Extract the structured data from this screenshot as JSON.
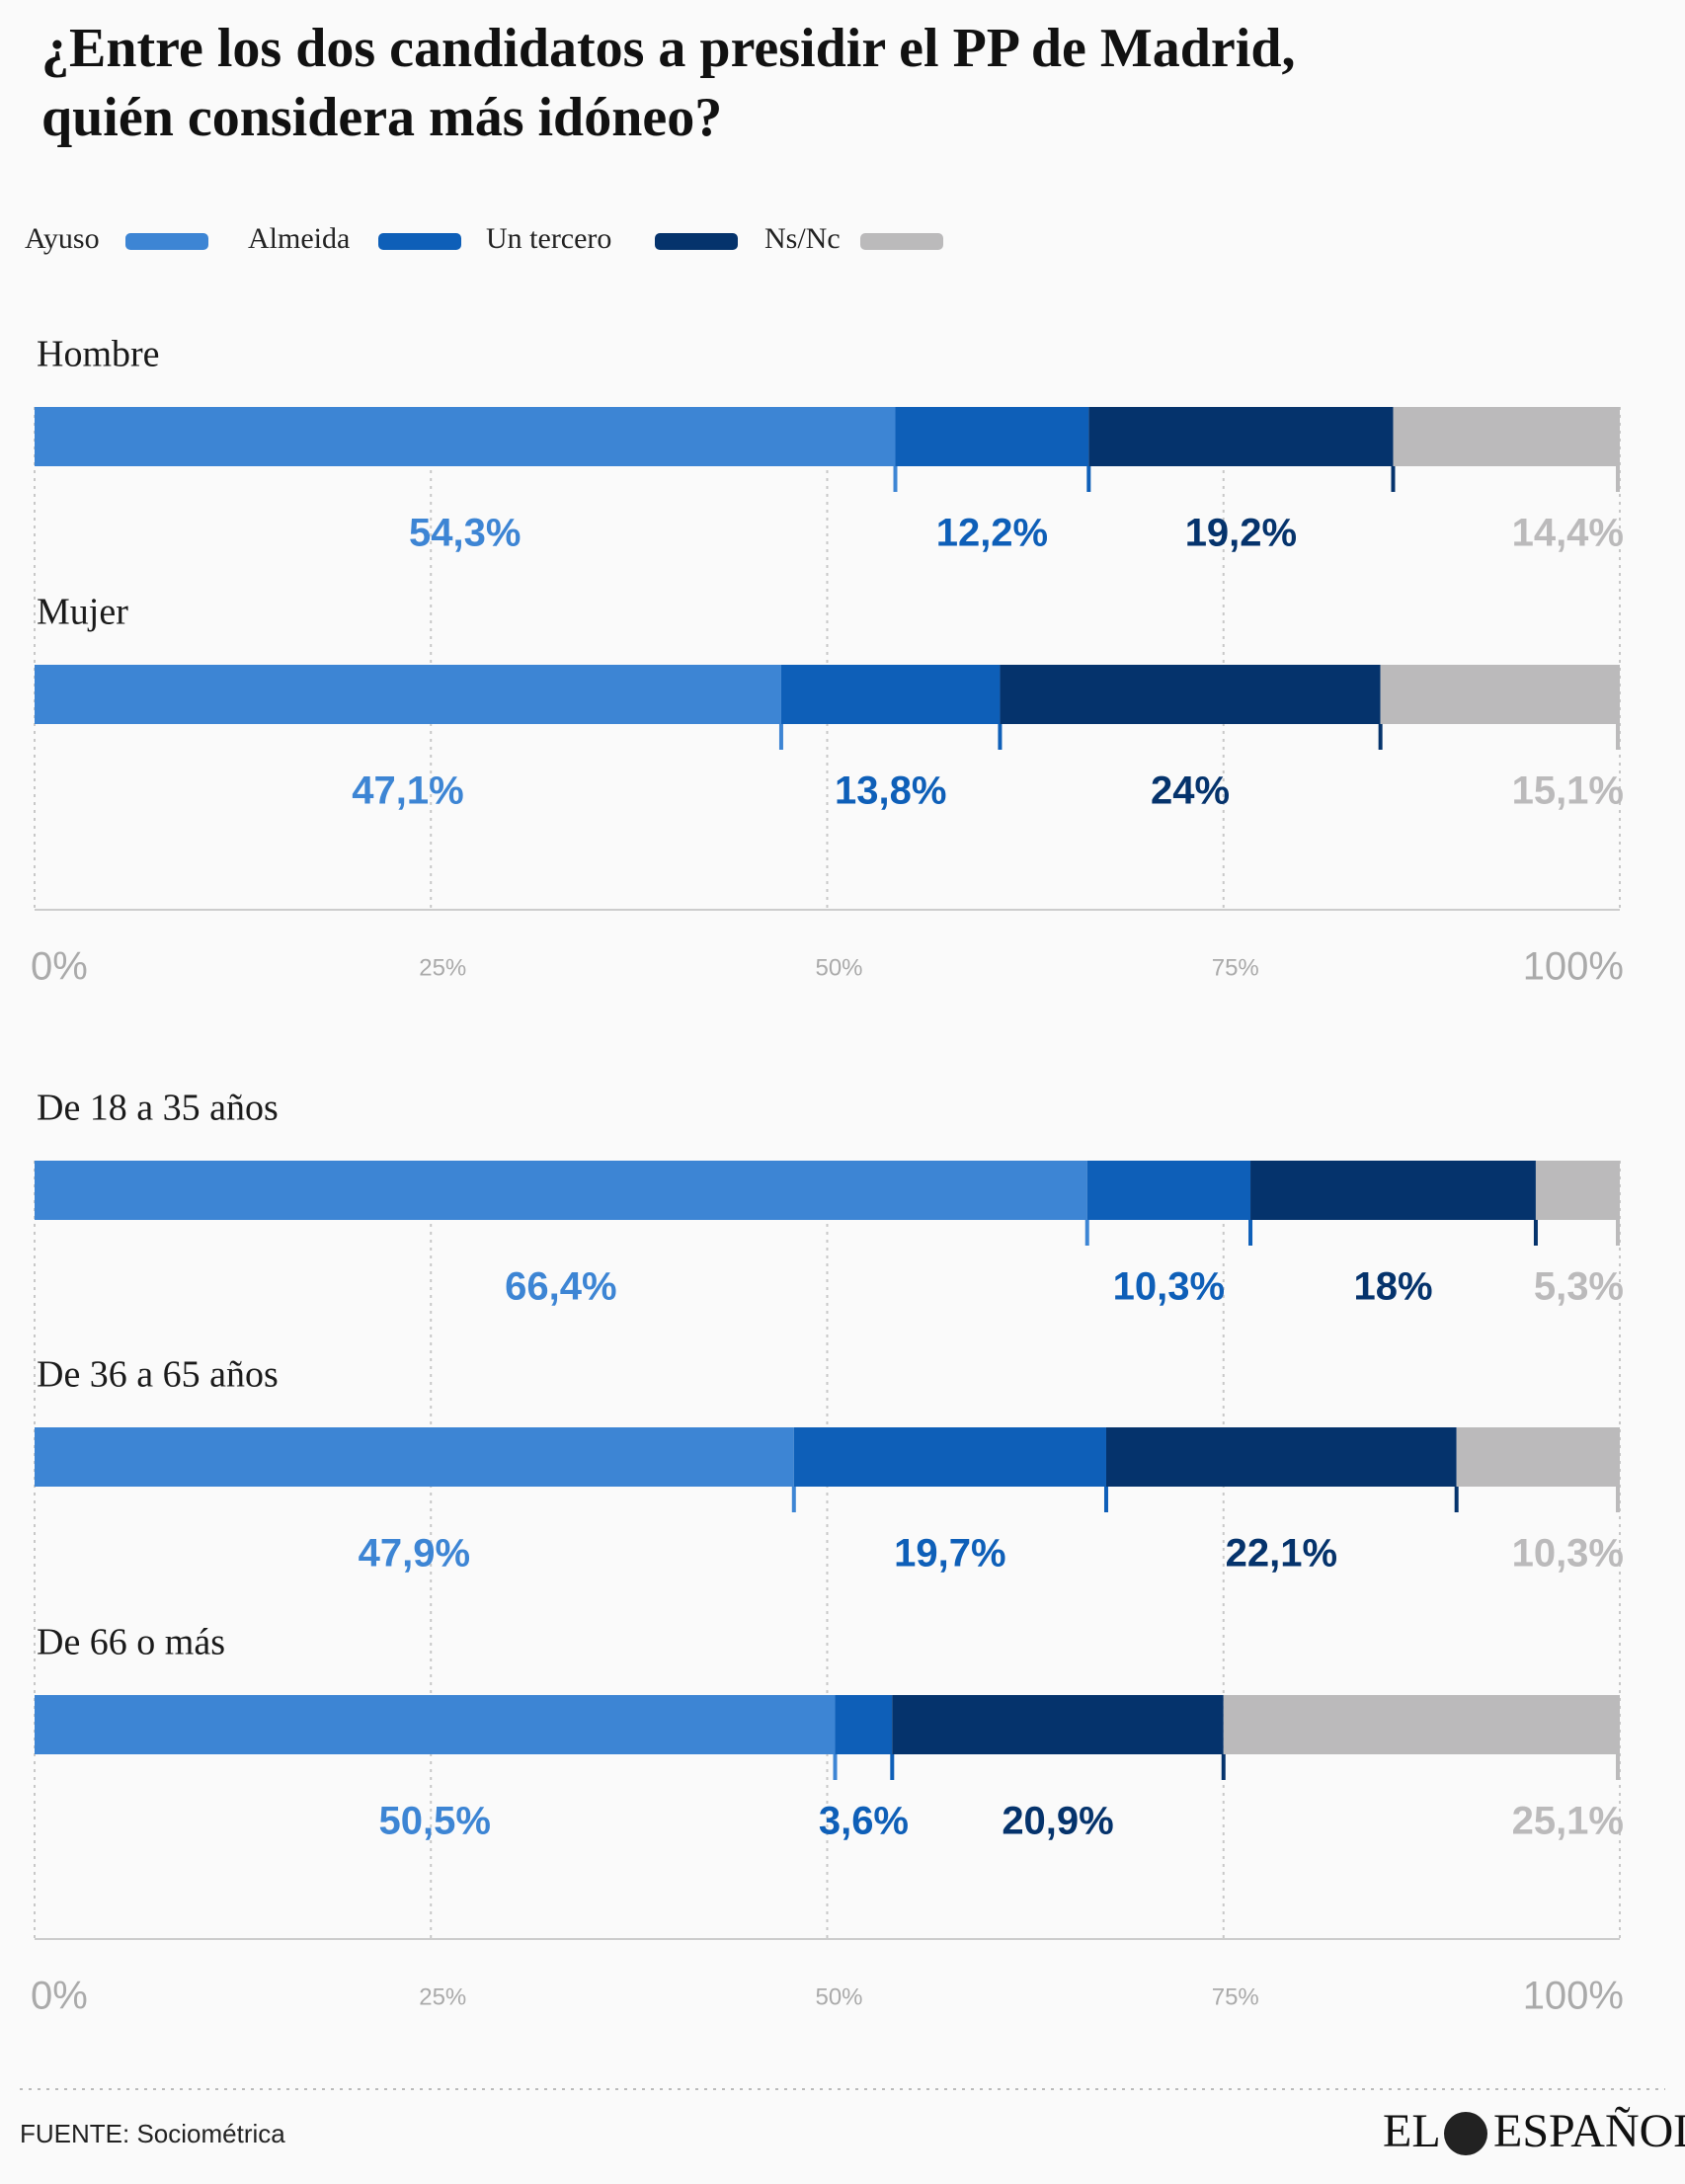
{
  "title": [
    "¿Entre los dos candidatos a presidir el PP de  Madrid,",
    "quién considera más idóneo?"
  ],
  "chart_data": {
    "type": "stacked-bar-horizontal",
    "categories": [
      "Hombre",
      "Mujer",
      "De 18 a 35 años",
      "De 36 a 65 años",
      "De 66 o más"
    ],
    "series": [
      {
        "name": "Ayuso",
        "color": "#3d85d4",
        "values": [
          54.3,
          47.1,
          66.4,
          47.9,
          50.5
        ],
        "value_labels": [
          "54,3%",
          "47,1%",
          "66,4%",
          "47,9%",
          "50,5%"
        ]
      },
      {
        "name": "Almeida",
        "color": "#0e5fb8",
        "values": [
          12.2,
          13.8,
          10.3,
          19.7,
          3.6
        ],
        "value_labels": [
          "12,2%",
          "13,8%",
          "10,3%",
          "19,7%",
          "3,6%"
        ]
      },
      {
        "name": "Un tercero",
        "color": "#05336c",
        "values": [
          19.2,
          24,
          18,
          22.1,
          20.9
        ],
        "value_labels": [
          "19,2%",
          "24%",
          "18%",
          "22,1%",
          "20,9%"
        ]
      },
      {
        "name": "Ns/Nc",
        "color": "#bbbabb",
        "values": [
          14.4,
          15.1,
          5.3,
          10.3,
          25.1
        ],
        "value_labels": [
          "14,4%",
          "15,1%",
          "5,3%",
          "10,3%",
          "25,1%"
        ]
      }
    ],
    "xlim": [
      0,
      100
    ],
    "xticks": [
      {
        "value": 0,
        "label": "0%"
      },
      {
        "value": 25,
        "label": "25%"
      },
      {
        "value": 50,
        "label": "50%"
      },
      {
        "value": 75,
        "label": "75%"
      },
      {
        "value": 100,
        "label": "100%"
      }
    ],
    "grid": true
  },
  "source": "FUENTE: Sociométrica",
  "logo": [
    "EL",
    "ESPAÑOL"
  ]
}
